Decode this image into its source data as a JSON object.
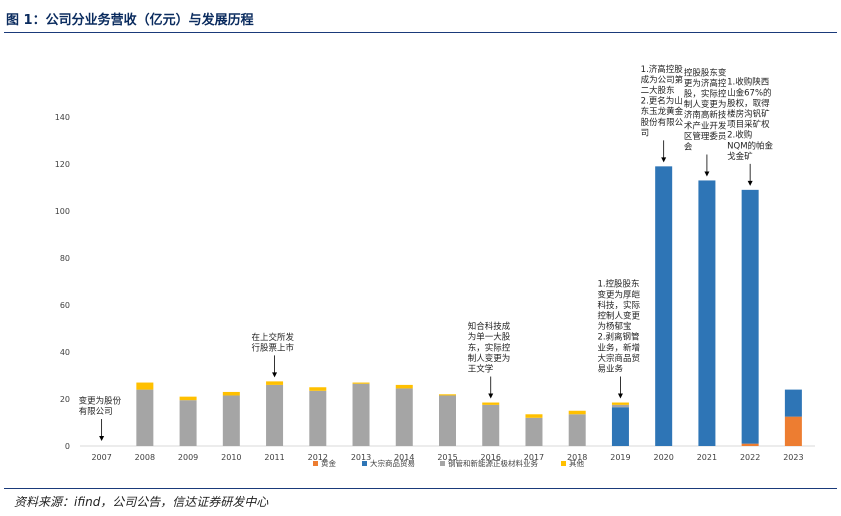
{
  "figure": {
    "title": "图 1：公司分业务营收（亿元）与发展历程",
    "source": "资料来源：ifind，公司公告，信达证券研发中心"
  },
  "colors": {
    "gold": "#ED7D31",
    "commodity_trade": "#2E75B6",
    "steel_pipe": "#A5A5A5",
    "other": "#FFC000",
    "axis": "#D9D9D9",
    "text": "#404040"
  },
  "chart_data": {
    "type": "bar",
    "stacked": true,
    "title": "",
    "xlabel": "",
    "ylabel": "",
    "ylim": [
      0,
      140
    ],
    "yticks": [
      0,
      20,
      40,
      60,
      80,
      100,
      120,
      140
    ],
    "grid": false,
    "legend_position": "bottom",
    "categories": [
      "2007",
      "2008",
      "2009",
      "2010",
      "2011",
      "2012",
      "2013",
      "2014",
      "2015",
      "2016",
      "2017",
      "2018",
      "2019",
      "2020",
      "2021",
      "2022",
      "2023"
    ],
    "series": [
      {
        "name": "黄金",
        "color_key": "gold",
        "values": [
          0,
          0,
          0,
          0,
          0,
          0,
          0,
          0,
          0,
          0,
          0,
          0,
          0,
          0,
          0,
          1,
          12.5
        ]
      },
      {
        "name": "大宗商品贸易",
        "color_key": "commodity_trade",
        "values": [
          0,
          0,
          0,
          0,
          0,
          0,
          0,
          0,
          0,
          0,
          0,
          0,
          16.5,
          119,
          113,
          108,
          11.5
        ]
      },
      {
        "name": "钢管和新能源正极材料业务",
        "color_key": "steel_pipe",
        "values": [
          0,
          24,
          19.5,
          21.5,
          26,
          23.5,
          26.5,
          24.5,
          21.5,
          17.5,
          12,
          13.5,
          1,
          0,
          0,
          0,
          0
        ]
      },
      {
        "name": "其他",
        "color_key": "other",
        "values": [
          0,
          3,
          1.5,
          1.5,
          1.5,
          1.5,
          0.5,
          1.5,
          0.5,
          1,
          1.5,
          1.5,
          1,
          0,
          0,
          0,
          0
        ]
      }
    ],
    "annotations": [
      {
        "category": "2007",
        "lines": [
          "变更为股份",
          "有限公司"
        ],
        "arrow_to": 0
      },
      {
        "category": "2011",
        "lines": [
          "在上交所发",
          "行股票上市"
        ],
        "arrow_to": 27.5
      },
      {
        "category": "2016",
        "lines": [
          "知合科技成",
          "为单一大股",
          "东，实际控",
          "制人变更为",
          "王文学"
        ],
        "arrow_to": 18.5
      },
      {
        "category": "2019",
        "lines": [
          "1.控股股东",
          "变更为厚皑",
          "科技，实际",
          "控制人变更",
          "为杨郁宝",
          "2.剥离钢管",
          "业务，新增",
          "大宗商品贸",
          "易业务"
        ],
        "arrow_to": 18.5
      },
      {
        "category": "2020",
        "lines": [
          "1.济高控股",
          "成为公司第",
          "二大股东",
          "2.更名为山",
          "东玉龙黄金",
          "股份有限公",
          "司"
        ],
        "arrow_to": 119
      },
      {
        "category": "2021",
        "lines": [
          "控股股东变",
          "更为济高控",
          "股，实际控",
          "制人变更为",
          "济南高新技",
          "术产业开发",
          "区管理委员",
          "会"
        ],
        "arrow_to": 113
      },
      {
        "category": "2022",
        "lines": [
          "1.收购陕西",
          "山金67%的",
          "股权，取得",
          "楼房沟钒矿",
          "项目采矿权",
          "2.收购",
          "NQM的帕金",
          "戈金矿"
        ],
        "arrow_to": 109
      }
    ]
  }
}
